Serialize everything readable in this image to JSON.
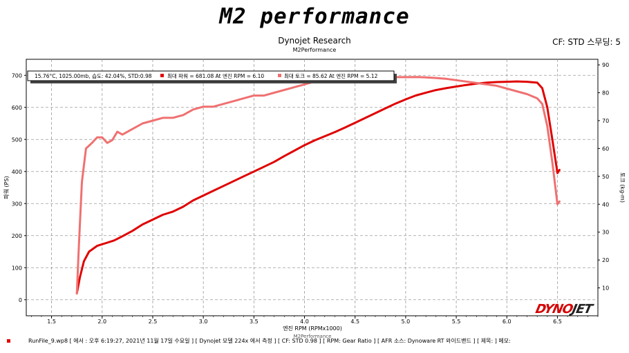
{
  "banner": "M2 performance",
  "cf_label": "CF: STD 스무딩: 5",
  "footer": {
    "text": "RunFile_9.wp8  [ 에서 : 오후 6:19:27, 2021년 11월 17일 수요일 ] [ Dynojet 모델 224x 에서 측정 ] [ CF: STD 0.98 ] [ RPM: Gear Ratio ] [ AFR 소스: Dynoware RT 와이드밴드 ] [ 제목: ]  메모:"
  },
  "logo": {
    "part1": "DYNO",
    "part2": "JET"
  },
  "colors": {
    "power": "#e00000",
    "torque": "#f07070",
    "info_marker_power": "#e00000",
    "info_marker_torque": "#f07070"
  },
  "chart_data": {
    "type": "line",
    "title": "Dynojet Research",
    "subtitle": "M2Performance",
    "xlabel": "엔진 RPM  (RPMx1000)",
    "xlabel_small": "M2Performance",
    "ylabel_left": "파워 (PS)",
    "ylabel_right": "토크 (kg-m)",
    "xlim": [
      1.25,
      6.9
    ],
    "ylim_left": [
      -50,
      750
    ],
    "ylim_right": [
      0,
      92
    ],
    "x_ticks": [
      "1.5",
      "2.0",
      "2.5",
      "3.0",
      "3.5",
      "4.0",
      "4.5",
      "5.0",
      "5.5",
      "6.0",
      "6.5"
    ],
    "y_left_ticks": [
      "0",
      "100",
      "200",
      "300",
      "400",
      "500",
      "600",
      "700"
    ],
    "y_right_ticks": [
      "10",
      "20",
      "30",
      "40",
      "50",
      "60",
      "70",
      "80",
      "90"
    ],
    "grid": true,
    "info_box": {
      "conditions": "15.76°C, 1025.00mb, 습도: 42.04%, STD:0.98",
      "power_max": "최대 파워 = 681.08 At 엔진 RPM = 6.10",
      "torque_max": "최대 토크 = 85.62 At 엔진 RPM = 5.12"
    },
    "series": [
      {
        "key": "power",
        "axis": "left",
        "x": [
          1.75,
          1.78,
          1.82,
          1.87,
          1.95,
          2.05,
          2.12,
          2.2,
          2.3,
          2.4,
          2.5,
          2.6,
          2.7,
          2.8,
          2.9,
          3.0,
          3.1,
          3.2,
          3.3,
          3.4,
          3.5,
          3.6,
          3.7,
          3.8,
          3.9,
          4.0,
          4.1,
          4.2,
          4.3,
          4.4,
          4.5,
          4.6,
          4.7,
          4.8,
          4.9,
          5.0,
          5.1,
          5.2,
          5.3,
          5.4,
          5.5,
          5.6,
          5.7,
          5.8,
          5.9,
          6.0,
          6.1,
          6.2,
          6.3,
          6.35,
          6.4,
          6.45,
          6.5,
          6.52
        ],
        "y": [
          20,
          70,
          120,
          150,
          168,
          178,
          185,
          198,
          215,
          235,
          250,
          265,
          275,
          290,
          310,
          325,
          340,
          355,
          370,
          385,
          400,
          415,
          430,
          448,
          465,
          482,
          497,
          510,
          523,
          537,
          552,
          567,
          582,
          597,
          612,
          625,
          637,
          646,
          654,
          660,
          665,
          670,
          674,
          677,
          679,
          680,
          681,
          680,
          677,
          660,
          600,
          500,
          395,
          405
        ]
      },
      {
        "key": "torque",
        "axis": "right",
        "x": [
          1.75,
          1.77,
          1.8,
          1.84,
          1.9,
          1.95,
          2.0,
          2.05,
          2.1,
          2.15,
          2.2,
          2.3,
          2.4,
          2.5,
          2.6,
          2.7,
          2.8,
          2.9,
          3.0,
          3.1,
          3.2,
          3.3,
          3.4,
          3.5,
          3.6,
          3.7,
          3.8,
          3.9,
          4.0,
          4.1,
          4.2,
          4.3,
          4.4,
          4.5,
          4.6,
          4.7,
          4.8,
          4.9,
          5.0,
          5.12,
          5.2,
          5.3,
          5.4,
          5.5,
          5.6,
          5.7,
          5.8,
          5.9,
          6.0,
          6.1,
          6.2,
          6.3,
          6.35,
          6.4,
          6.45,
          6.5,
          6.52
        ],
        "y": [
          8,
          25,
          48,
          60,
          62,
          64,
          64,
          62,
          63,
          66,
          65,
          67,
          69,
          70,
          71,
          71,
          72,
          74,
          75,
          75,
          76,
          77,
          78,
          79,
          79,
          80,
          81,
          82,
          83,
          84,
          84,
          85,
          85,
          85,
          85.5,
          85.5,
          85.6,
          85.6,
          85.6,
          85.62,
          85.5,
          85.3,
          85,
          84.5,
          84,
          83.5,
          83,
          82.5,
          81.5,
          80.5,
          79.5,
          78,
          76,
          68,
          55,
          40,
          41
        ]
      }
    ]
  }
}
